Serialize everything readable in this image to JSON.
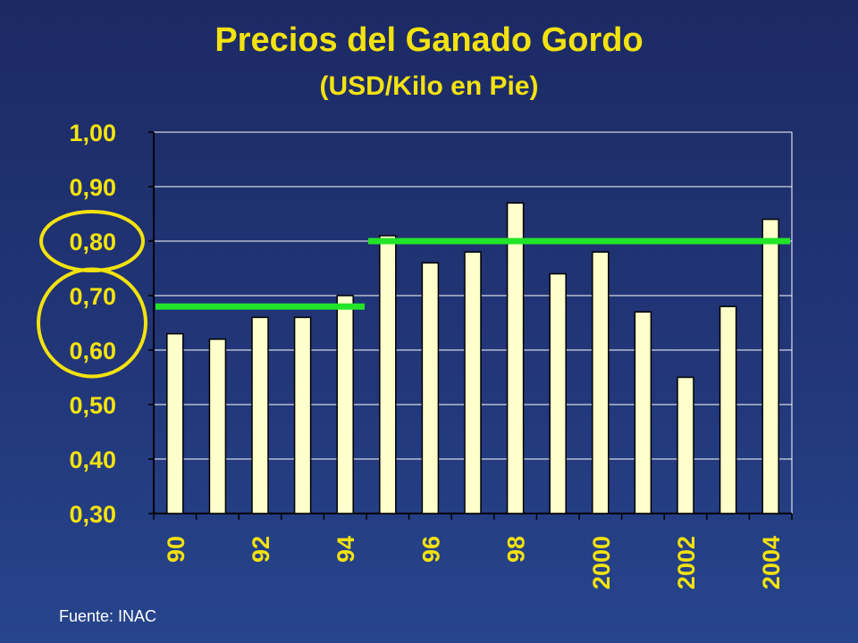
{
  "slide": {
    "title": "Precios del Ganado Gordo",
    "subtitle": "(USD/Kilo en Pie)",
    "source": "Fuente: INAC"
  },
  "colors": {
    "background": "#22377a",
    "text": "#f3e20f",
    "bar_fill": "#ffffcc",
    "gridline": "#ffffff",
    "average_line": "#22e52a",
    "highlight_circle": "#f3e20f"
  },
  "chart_data": {
    "type": "bar",
    "title": "Precios del Ganado Gordo",
    "subtitle": "(USD/Kilo en Pie)",
    "xlabel": "",
    "ylabel": "",
    "ylim": [
      0.3,
      1.0
    ],
    "yticks": [
      0.3,
      0.4,
      0.5,
      0.6,
      0.7,
      0.8,
      0.9,
      1.0
    ],
    "ytick_labels": [
      "0,30",
      "0,40",
      "0,50",
      "0,60",
      "0,70",
      "0,80",
      "0,90",
      "1,00"
    ],
    "categories": [
      "1990",
      "1991",
      "1992",
      "1993",
      "1994",
      "1995",
      "1996",
      "1997",
      "1998",
      "1999",
      "2000",
      "2001",
      "2002",
      "2003",
      "2004"
    ],
    "category_labels": [
      "90",
      "",
      "92",
      "",
      "94",
      "",
      "96",
      "",
      "98",
      "",
      "2000",
      "",
      "2002",
      "",
      "2004"
    ],
    "values": [
      0.63,
      0.62,
      0.66,
      0.66,
      0.7,
      0.81,
      0.76,
      0.78,
      0.87,
      0.74,
      0.78,
      0.67,
      0.55,
      0.68,
      0.84
    ],
    "grid": true,
    "legend": "none",
    "reference_lines": [
      {
        "from": "1990",
        "to": "1994",
        "value": 0.68
      },
      {
        "from": "1995",
        "to": "2004",
        "value": 0.8
      }
    ],
    "highlighted_ticks": [
      "0,80",
      "0,70",
      "0,60"
    ]
  }
}
